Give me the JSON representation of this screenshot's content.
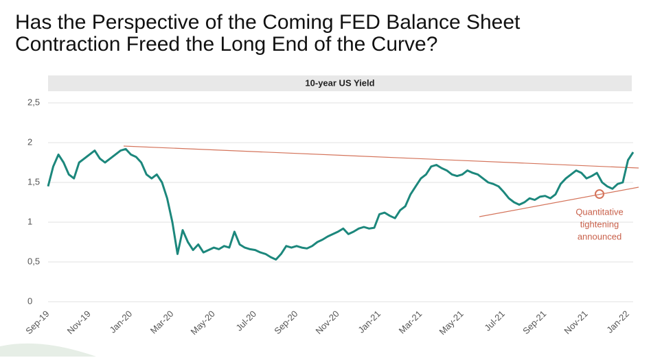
{
  "title": "Has the Perspective of the Coming FED Balance Sheet Contraction Freed the Long End of the Curve?",
  "chart_data": {
    "type": "line",
    "title": "10-year US Yield",
    "categories": [
      "Sep-19",
      null,
      null,
      null,
      null,
      null,
      null,
      null,
      "Nov-19",
      null,
      null,
      null,
      null,
      null,
      null,
      null,
      "Jan-20",
      null,
      null,
      null,
      null,
      null,
      null,
      null,
      "Mar-20",
      null,
      null,
      null,
      null,
      null,
      null,
      null,
      "May-20",
      null,
      null,
      null,
      null,
      null,
      null,
      null,
      "Jul-20",
      null,
      null,
      null,
      null,
      null,
      null,
      null,
      "Sep-20",
      null,
      null,
      null,
      null,
      null,
      null,
      null,
      "Nov-20",
      null,
      null,
      null,
      null,
      null,
      null,
      null,
      "Jan-21",
      null,
      null,
      null,
      null,
      null,
      null,
      null,
      "Mar-21",
      null,
      null,
      null,
      null,
      null,
      null,
      null,
      "May-21",
      null,
      null,
      null,
      null,
      null,
      null,
      null,
      "Jul-21",
      null,
      null,
      null,
      null,
      null,
      null,
      null,
      "Sep-21",
      null,
      null,
      null,
      null,
      null,
      null,
      null,
      "Nov-21",
      null,
      null,
      null,
      null,
      null,
      null,
      null,
      "Jan-22",
      null
    ],
    "series": [
      {
        "name": "10-year US Yield",
        "color": "#1c877c",
        "values": [
          1.45,
          1.7,
          1.85,
          1.75,
          1.6,
          1.55,
          1.75,
          1.8,
          1.85,
          1.9,
          1.8,
          1.75,
          1.8,
          1.85,
          1.9,
          1.92,
          1.85,
          1.82,
          1.75,
          1.6,
          1.55,
          1.6,
          1.5,
          1.3,
          1.0,
          0.6,
          0.9,
          0.75,
          0.65,
          0.72,
          0.62,
          0.65,
          0.68,
          0.66,
          0.7,
          0.68,
          0.88,
          0.72,
          0.68,
          0.66,
          0.65,
          0.62,
          0.6,
          0.56,
          0.53,
          0.6,
          0.7,
          0.68,
          0.7,
          0.68,
          0.67,
          0.7,
          0.75,
          0.78,
          0.82,
          0.85,
          0.88,
          0.92,
          0.85,
          0.88,
          0.92,
          0.94,
          0.92,
          0.93,
          1.1,
          1.12,
          1.08,
          1.05,
          1.15,
          1.2,
          1.35,
          1.45,
          1.55,
          1.6,
          1.7,
          1.72,
          1.68,
          1.65,
          1.6,
          1.58,
          1.6,
          1.65,
          1.62,
          1.6,
          1.55,
          1.5,
          1.48,
          1.45,
          1.38,
          1.3,
          1.25,
          1.22,
          1.25,
          1.3,
          1.28,
          1.32,
          1.33,
          1.3,
          1.35,
          1.48,
          1.55,
          1.6,
          1.65,
          1.62,
          1.55,
          1.58,
          1.62,
          1.5,
          1.45,
          1.42,
          1.48,
          1.5,
          1.78,
          1.88
        ]
      }
    ],
    "ylim": [
      0,
      2.5
    ],
    "yticks": [
      0,
      {
        "value": 0.5,
        "label": "0,5"
      },
      1,
      {
        "value": 1.5,
        "label": "1,5"
      },
      2,
      {
        "value": 2.5,
        "label": "2,5"
      }
    ],
    "grid": true,
    "annotation": [
      "Quantitative",
      "tightening",
      "announced"
    ]
  }
}
